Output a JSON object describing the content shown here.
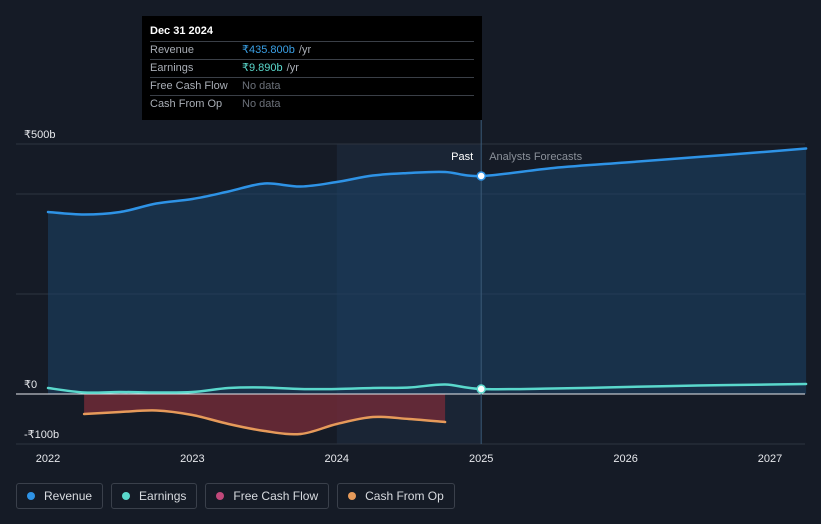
{
  "chart_data": {
    "type": "area",
    "currency_symbol": "₹",
    "x_unit": "year",
    "xlim": [
      2022.0,
      2027.25
    ],
    "ylim": [
      -100,
      500
    ],
    "y_ticks": [
      {
        "value": 500,
        "label": "₹500b"
      },
      {
        "value": 0,
        "label": "₹0"
      },
      {
        "value": -100,
        "label": "-₹100b"
      }
    ],
    "x_ticks": [
      {
        "value": 2022,
        "label": "2022"
      },
      {
        "value": 2023,
        "label": "2023"
      },
      {
        "value": 2024,
        "label": "2024"
      },
      {
        "value": 2025,
        "label": "2025"
      },
      {
        "value": 2026,
        "label": "2026"
      },
      {
        "value": 2027,
        "label": "2027"
      }
    ],
    "gridlines": [
      400,
      200
    ],
    "divider": {
      "x": 2025.0,
      "past_label": "Past",
      "forecast_label": "Analysts Forecasts"
    },
    "highlight_from": 2024.0,
    "series": [
      {
        "name": "Revenue",
        "color": "#2e93e6",
        "fill": "#1b4468",
        "points": [
          [
            2022.0,
            364
          ],
          [
            2022.25,
            359
          ],
          [
            2022.5,
            364
          ],
          [
            2022.75,
            381
          ],
          [
            2023.0,
            390
          ],
          [
            2023.25,
            405
          ],
          [
            2023.5,
            421
          ],
          [
            2023.75,
            415
          ],
          [
            2024.0,
            424
          ],
          [
            2024.25,
            437
          ],
          [
            2024.5,
            442
          ],
          [
            2024.75,
            444
          ],
          [
            2025.0,
            436
          ],
          [
            2025.5,
            452
          ],
          [
            2026.0,
            463
          ],
          [
            2026.5,
            474
          ],
          [
            2027.0,
            485
          ],
          [
            2027.25,
            491
          ]
        ]
      },
      {
        "name": "Earnings",
        "color": "#5ad8cc",
        "points": [
          [
            2022.0,
            12
          ],
          [
            2022.25,
            3
          ],
          [
            2022.5,
            4
          ],
          [
            2022.75,
            3
          ],
          [
            2023.0,
            4
          ],
          [
            2023.25,
            12
          ],
          [
            2023.5,
            13
          ],
          [
            2023.75,
            10
          ],
          [
            2024.0,
            10
          ],
          [
            2024.25,
            12
          ],
          [
            2024.5,
            13
          ],
          [
            2024.75,
            19
          ],
          [
            2025.0,
            10
          ],
          [
            2025.5,
            11
          ],
          [
            2026.0,
            14
          ],
          [
            2026.5,
            17
          ],
          [
            2027.0,
            19
          ],
          [
            2027.25,
            20
          ]
        ]
      },
      {
        "name": "Free Cash Flow",
        "color": "#c0487a",
        "fill": "#6e2a37",
        "points": [
          [
            2022.25,
            -40
          ],
          [
            2022.5,
            -36
          ],
          [
            2022.75,
            -33
          ],
          [
            2023.0,
            -42
          ],
          [
            2023.25,
            -60
          ],
          [
            2023.5,
            -74
          ],
          [
            2023.75,
            -80
          ],
          [
            2024.0,
            -60
          ],
          [
            2024.25,
            -46
          ],
          [
            2024.5,
            -50
          ],
          [
            2024.75,
            -56
          ]
        ]
      },
      {
        "name": "Cash From Op",
        "color": "#e69a5a",
        "points": [
          [
            2022.25,
            -40
          ],
          [
            2022.5,
            -36
          ],
          [
            2022.75,
            -33
          ],
          [
            2023.0,
            -42
          ],
          [
            2023.25,
            -60
          ],
          [
            2023.5,
            -74
          ],
          [
            2023.75,
            -80
          ],
          [
            2024.0,
            -60
          ],
          [
            2024.25,
            -46
          ],
          [
            2024.5,
            -50
          ],
          [
            2024.75,
            -56
          ]
        ]
      }
    ],
    "markers": [
      {
        "series": "Revenue",
        "x": 2025.0,
        "y": 436
      },
      {
        "series": "Earnings",
        "x": 2025.0,
        "y": 10
      }
    ]
  },
  "tooltip": {
    "date": "Dec 31 2024",
    "rows": [
      {
        "label": "Revenue",
        "value": "₹435.800b",
        "unit": "/yr"
      },
      {
        "label": "Earnings",
        "value": "₹9.890b",
        "unit": "/yr"
      },
      {
        "label": "Free Cash Flow",
        "value": "No data",
        "unit": ""
      },
      {
        "label": "Cash From Op",
        "value": "No data",
        "unit": ""
      }
    ]
  },
  "legend": [
    {
      "label": "Revenue",
      "color": "#2e93e6"
    },
    {
      "label": "Earnings",
      "color": "#5ad8cc"
    },
    {
      "label": "Free Cash Flow",
      "color": "#c0487a"
    },
    {
      "label": "Cash From Op",
      "color": "#e69a5a"
    }
  ]
}
